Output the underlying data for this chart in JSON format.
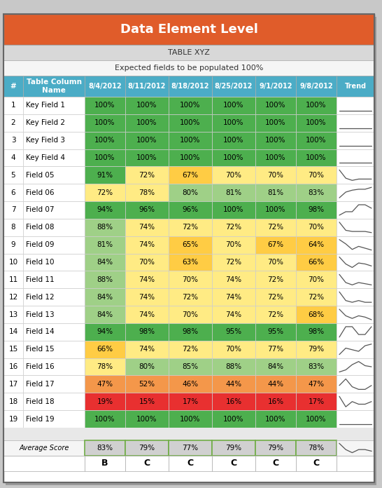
{
  "title": "Data Element Level",
  "subtitle1": "TABLE XYZ",
  "subtitle2": "Expected fields to be populated 100%",
  "header_bg": "#E05C2A",
  "header_text_color": "#FFFFFF",
  "sub1_bg": "#D8D8D8",
  "sub2_bg": "#F5F5F5",
  "col_header_bg": "#4BACC6",
  "col_header_text": "#FFFFFF",
  "rows": [
    [
      1,
      "Key Field 1",
      100,
      100,
      100,
      100,
      100,
      100
    ],
    [
      2,
      "Key Field 2",
      100,
      100,
      100,
      100,
      100,
      100
    ],
    [
      3,
      "Key Field 3",
      100,
      100,
      100,
      100,
      100,
      100
    ],
    [
      4,
      "Key Field 4",
      100,
      100,
      100,
      100,
      100,
      100
    ],
    [
      5,
      "Field 05",
      91,
      72,
      67,
      70,
      70,
      70
    ],
    [
      6,
      "Field 06",
      72,
      78,
      80,
      81,
      81,
      83
    ],
    [
      7,
      "Field 07",
      94,
      96,
      96,
      100,
      100,
      98
    ],
    [
      8,
      "Field 08",
      88,
      74,
      72,
      72,
      72,
      70
    ],
    [
      9,
      "Field 09",
      81,
      74,
      65,
      70,
      67,
      64
    ],
    [
      10,
      "Field 10",
      84,
      70,
      63,
      72,
      70,
      66
    ],
    [
      11,
      "Field 11",
      88,
      74,
      70,
      74,
      72,
      70
    ],
    [
      12,
      "Field 12",
      84,
      74,
      72,
      74,
      72,
      72
    ],
    [
      13,
      "Field 13",
      84,
      74,
      70,
      74,
      72,
      68
    ],
    [
      14,
      "Field 14",
      94,
      98,
      98,
      95,
      95,
      98
    ],
    [
      15,
      "Field 15",
      66,
      74,
      72,
      70,
      77,
      79
    ],
    [
      16,
      "Field 16",
      78,
      80,
      85,
      88,
      84,
      83
    ],
    [
      17,
      "Field 17",
      47,
      52,
      46,
      44,
      44,
      47
    ],
    [
      18,
      "Field 18",
      19,
      15,
      17,
      16,
      16,
      17
    ],
    [
      19,
      "Field 19",
      100,
      100,
      100,
      100,
      100,
      100
    ]
  ],
  "col_dates": [
    "8/4/2012",
    "8/11/2012",
    "8/18/2012",
    "8/25/2012",
    "9/1/2012",
    "9/8/2012"
  ],
  "avg_scores": [
    83,
    79,
    77,
    79,
    79,
    78
  ],
  "grades": [
    "B",
    "C",
    "C",
    "C",
    "C",
    "C"
  ],
  "outer_bg": "#C8C8C8",
  "table_bg": "#FFFFFF",
  "border_color": "#888888"
}
